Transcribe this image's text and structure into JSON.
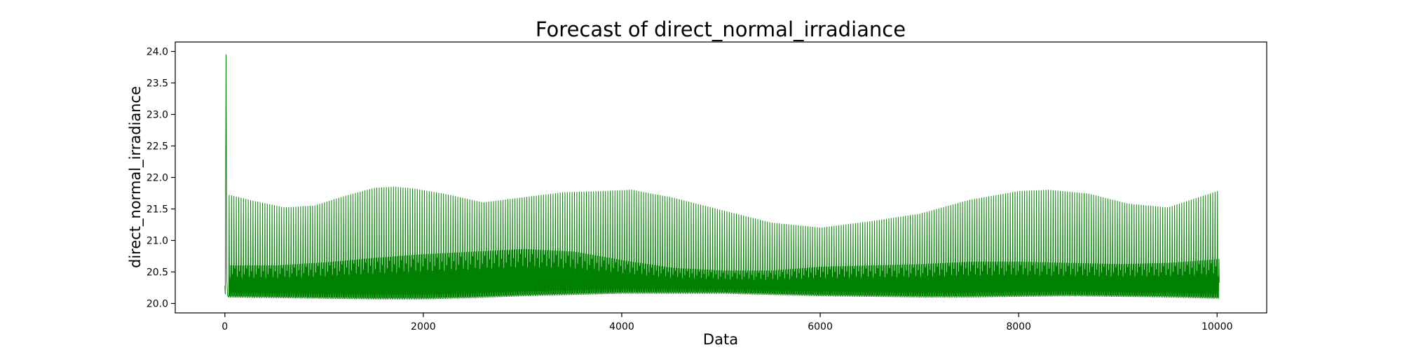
{
  "chart_data": {
    "type": "line",
    "title": "Forecast of direct_normal_irradiance",
    "xlabel": "Data",
    "ylabel": "direct_normal_irradiance",
    "xlim": [
      -500,
      10500
    ],
    "ylim": [
      19.85,
      24.15
    ],
    "x_ticks": [
      0,
      2000,
      4000,
      6000,
      8000,
      10000
    ],
    "y_ticks": [
      20.0,
      20.5,
      21.0,
      21.5,
      22.0,
      22.5,
      23.0,
      23.5,
      24.0
    ],
    "grid": false,
    "legend": "none",
    "series": [
      {
        "color": "#008000",
        "x_start": 0,
        "x_end": 10000,
        "cycle_length": 24,
        "initial_spike": {
          "x": 12,
          "y": 23.95
        },
        "upper_envelope": {
          "x": [
            40,
            300,
            600,
            900,
            1200,
            1500,
            1700,
            1900,
            2200,
            2600,
            3000,
            3400,
            3800,
            4100,
            4500,
            5000,
            5500,
            6000,
            6500,
            7000,
            7500,
            8000,
            8300,
            8700,
            9100,
            9500,
            10000
          ],
          "y": [
            21.72,
            21.62,
            21.52,
            21.55,
            21.7,
            21.83,
            21.85,
            21.82,
            21.74,
            21.6,
            21.68,
            21.76,
            21.78,
            21.8,
            21.68,
            21.48,
            21.28,
            21.2,
            21.3,
            21.42,
            21.64,
            21.78,
            21.8,
            21.74,
            21.58,
            21.52,
            21.78
          ]
        },
        "band_top": {
          "x": [
            40,
            500,
            1000,
            1500,
            2000,
            2500,
            3000,
            3500,
            4000,
            4500,
            5000,
            5500,
            6000,
            6500,
            7000,
            7500,
            8000,
            8500,
            9000,
            9500,
            10000
          ],
          "y": [
            20.6,
            20.6,
            20.65,
            20.72,
            20.78,
            20.82,
            20.86,
            20.82,
            20.68,
            20.56,
            20.52,
            20.52,
            20.58,
            20.6,
            20.62,
            20.66,
            20.66,
            20.64,
            20.62,
            20.64,
            20.7
          ]
        },
        "lower_envelope": {
          "x": [
            40,
            1000,
            1500,
            2000,
            2500,
            3000,
            3500,
            4000,
            4500,
            5000,
            5500,
            6000,
            6500,
            7000,
            7500,
            8000,
            8500,
            9000,
            9500,
            10000
          ],
          "y": [
            20.1,
            20.08,
            20.07,
            20.07,
            20.09,
            20.12,
            20.14,
            20.16,
            20.16,
            20.16,
            20.14,
            20.12,
            20.11,
            20.1,
            20.1,
            20.11,
            20.12,
            20.11,
            20.1,
            20.08
          ]
        }
      }
    ]
  }
}
